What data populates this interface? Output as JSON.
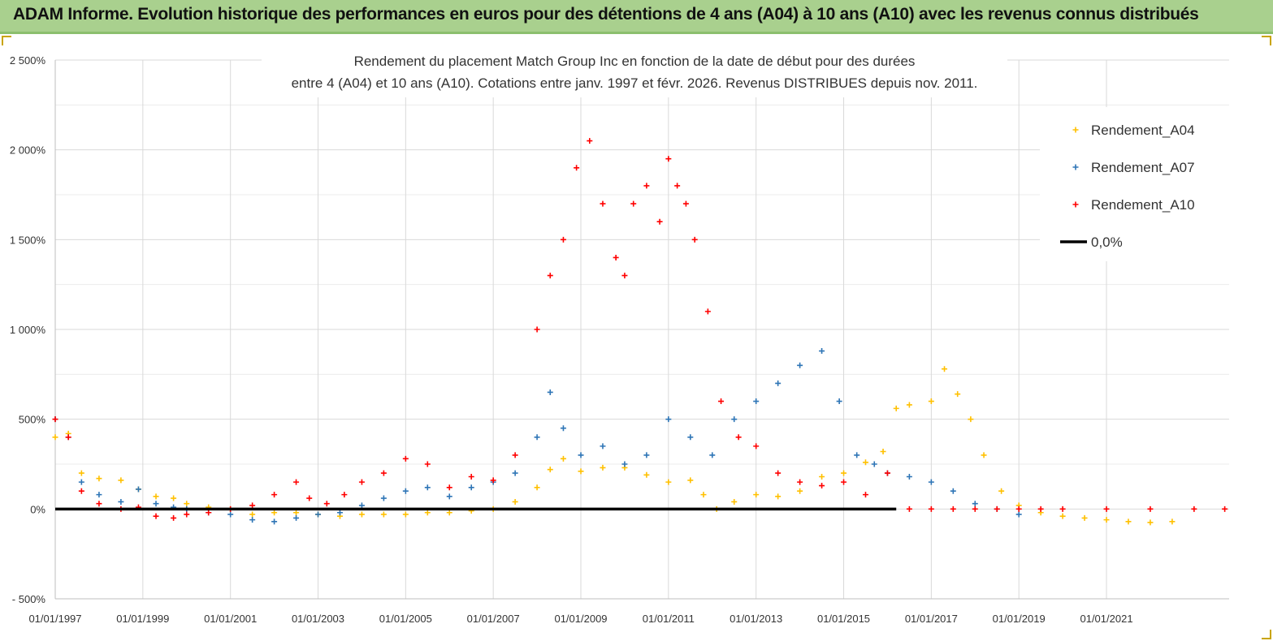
{
  "banner": {
    "title": "ADAM Informe. Evolution historique des performances en euros pour des détentions de 4 ans (A04) à 10 ans (A10) avec les revenus connus distribués"
  },
  "colors": {
    "banner_bg": "#a9d08e",
    "a04": "#ffc000",
    "a07": "#2e75b6",
    "a10": "#ff0000",
    "zero": "#000000",
    "grid": "#d9d9d9"
  },
  "chart_data": {
    "type": "scatter",
    "title_line1": "Rendement du placement Match Group Inc en fonction de la date de début pour des durées",
    "title_line2": "entre 4 (A04) et 10 ans (A10).  Cotations entre janv. 1997 et févr. 2026. Revenus DISTRIBUES depuis nov. 2011.",
    "ylim": [
      -500,
      2500
    ],
    "y_ticks": [
      -500,
      0,
      500,
      1000,
      1500,
      2000,
      2500
    ],
    "y_tick_labels": [
      "- 500%",
      "0%",
      "500%",
      "1 000%",
      "1 500%",
      "2 000%",
      "2 500%"
    ],
    "x_range": [
      1997.0,
      2023.8
    ],
    "x_ticks": [
      1997,
      1999,
      2001,
      2003,
      2005,
      2007,
      2009,
      2011,
      2013,
      2015,
      2017,
      2019,
      2021
    ],
    "x_tick_labels": [
      "01/01/1997",
      "01/01/1999",
      "01/01/2001",
      "01/01/2003",
      "01/01/2005",
      "01/01/2007",
      "01/01/2009",
      "01/01/2011",
      "01/01/2013",
      "01/01/2015",
      "01/01/2017",
      "01/01/2019",
      "01/01/2021"
    ],
    "legend_position": "top-right",
    "series": [
      {
        "name": "Rendement_A04",
        "color": "#ffc000",
        "marker": "+",
        "x": [
          1997.0,
          1997.3,
          1997.6,
          1998.0,
          1998.5,
          1998.9,
          1999.3,
          1999.7,
          2000.0,
          2000.5,
          2001.0,
          2001.5,
          2002.0,
          2002.5,
          2003.0,
          2003.5,
          2004.0,
          2004.5,
          2005.0,
          2005.5,
          2006.0,
          2006.5,
          2007.0,
          2007.5,
          2008.0,
          2008.3,
          2008.6,
          2009.0,
          2009.5,
          2010.0,
          2010.5,
          2011.0,
          2011.5,
          2011.8,
          2012.1,
          2012.5,
          2013.0,
          2013.5,
          2014.0,
          2014.5,
          2015.0,
          2015.5,
          2015.9,
          2016.2,
          2016.5,
          2017.0,
          2017.3,
          2017.6,
          2017.9,
          2018.2,
          2018.6,
          2019.0,
          2019.5,
          2020.0,
          2020.5,
          2021.0,
          2021.5,
          2022.0,
          2022.5
        ],
        "y": [
          400,
          420,
          200,
          170,
          160,
          110,
          70,
          60,
          30,
          10,
          0,
          -30,
          -20,
          -20,
          -30,
          -40,
          -30,
          -30,
          -30,
          -20,
          -20,
          -10,
          0,
          40,
          120,
          220,
          280,
          210,
          230,
          230,
          190,
          150,
          160,
          80,
          0,
          40,
          80,
          70,
          100,
          180,
          200,
          260,
          320,
          560,
          580,
          600,
          780,
          640,
          500,
          300,
          100,
          20,
          -20,
          -40,
          -50,
          -60,
          -70,
          -75,
          -70
        ]
      },
      {
        "name": "Rendement_A07",
        "color": "#2e75b6",
        "marker": "+",
        "x": [
          1997.0,
          1997.3,
          1997.6,
          1998.0,
          1998.5,
          1998.9,
          1999.3,
          1999.7,
          2000.0,
          2000.5,
          2001.0,
          2001.5,
          2002.0,
          2002.5,
          2003.0,
          2003.5,
          2004.0,
          2004.5,
          2005.0,
          2005.5,
          2006.0,
          2006.5,
          2007.0,
          2007.5,
          2008.0,
          2008.3,
          2008.6,
          2009.0,
          2009.5,
          2010.0,
          2010.5,
          2011.0,
          2011.5,
          2012.0,
          2012.5,
          2013.0,
          2013.5,
          2014.0,
          2014.5,
          2014.9,
          2015.3,
          2015.7,
          2016.0,
          2016.5,
          2017.0,
          2017.5,
          2018.0,
          2018.5,
          2019.0
        ],
        "y": [
          500,
          400,
          150,
          80,
          40,
          110,
          30,
          10,
          0,
          -20,
          -30,
          -60,
          -70,
          -50,
          -30,
          -20,
          20,
          60,
          100,
          120,
          70,
          120,
          150,
          200,
          400,
          650,
          450,
          300,
          350,
          250,
          300,
          500,
          400,
          300,
          500,
          600,
          700,
          800,
          880,
          600,
          300,
          250,
          200,
          180,
          150,
          100,
          30,
          0,
          -30
        ]
      },
      {
        "name": "Rendement_A10",
        "color": "#ff0000",
        "marker": "+",
        "x": [
          1997.0,
          1997.3,
          1997.6,
          1998.0,
          1998.5,
          1998.9,
          1999.3,
          1999.7,
          2000.0,
          2000.5,
          2001.0,
          2001.5,
          2002.0,
          2002.5,
          2002.8,
          2003.2,
          2003.6,
          2004.0,
          2004.5,
          2005.0,
          2005.5,
          2006.0,
          2006.5,
          2007.0,
          2007.5,
          2008.0,
          2008.3,
          2008.6,
          2008.9,
          2009.2,
          2009.5,
          2009.8,
          2010.0,
          2010.2,
          2010.5,
          2010.8,
          2011.0,
          2011.2,
          2011.4,
          2011.6,
          2011.9,
          2012.2,
          2012.6,
          2013.0,
          2013.5,
          2014.0,
          2014.5,
          2015.0,
          2015.5,
          2016.0,
          2016.5,
          2017.0,
          2017.5,
          2018.0,
          2018.5,
          2019.0,
          2019.5,
          2020.0,
          2021.0,
          2022.0,
          2023.0,
          2023.7
        ],
        "y": [
          500,
          400,
          100,
          30,
          0,
          10,
          -40,
          -50,
          -30,
          -20,
          0,
          20,
          80,
          150,
          60,
          30,
          80,
          150,
          200,
          280,
          250,
          120,
          180,
          160,
          300,
          1000,
          1300,
          1500,
          1900,
          2050,
          1700,
          1400,
          1300,
          1700,
          1800,
          1600,
          1950,
          1800,
          1700,
          1500,
          1100,
          600,
          400,
          350,
          200,
          150,
          130,
          150,
          80,
          200,
          0,
          0,
          0,
          0,
          0,
          0,
          0,
          0,
          0,
          0,
          0,
          0
        ]
      },
      {
        "name": "0,0%",
        "color": "#000000",
        "marker": "line",
        "x": [
          1997.0,
          2016.2
        ],
        "y": [
          0,
          0
        ]
      }
    ]
  }
}
